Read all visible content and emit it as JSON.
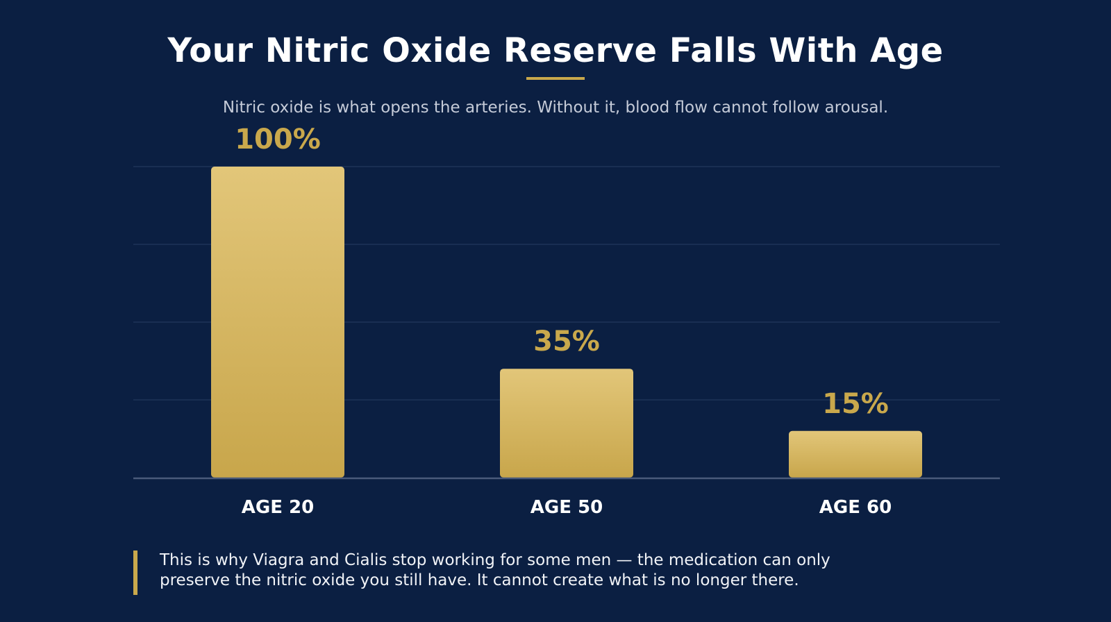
{
  "title": "Your Nitric Oxide Reserve Falls With Age",
  "subtitle": "Nitric oxide is what opens the arteries. Without it, blood flow cannot follow arousal.",
  "callout": "This is why Viagra and Cialis stop working for some men — the medication can only preserve the nitric oxide you still have. It cannot create what is no longer there.",
  "colors": {
    "background": "#0b1f42",
    "accent": "#c9a84c",
    "bar_top": "#e2c679",
    "bar_bottom": "#c8a64b",
    "grid": "#1e3358",
    "axis": "#4a5a7a"
  },
  "chart_data": {
    "type": "bar",
    "categories": [
      "AGE 20",
      "AGE 50",
      "AGE 60"
    ],
    "values": [
      100,
      35,
      15
    ],
    "data_labels": [
      "100%",
      "35%",
      "15%"
    ],
    "ylim": [
      0,
      100
    ],
    "grid": true,
    "xlabel": "",
    "ylabel": "",
    "legend": "none"
  }
}
